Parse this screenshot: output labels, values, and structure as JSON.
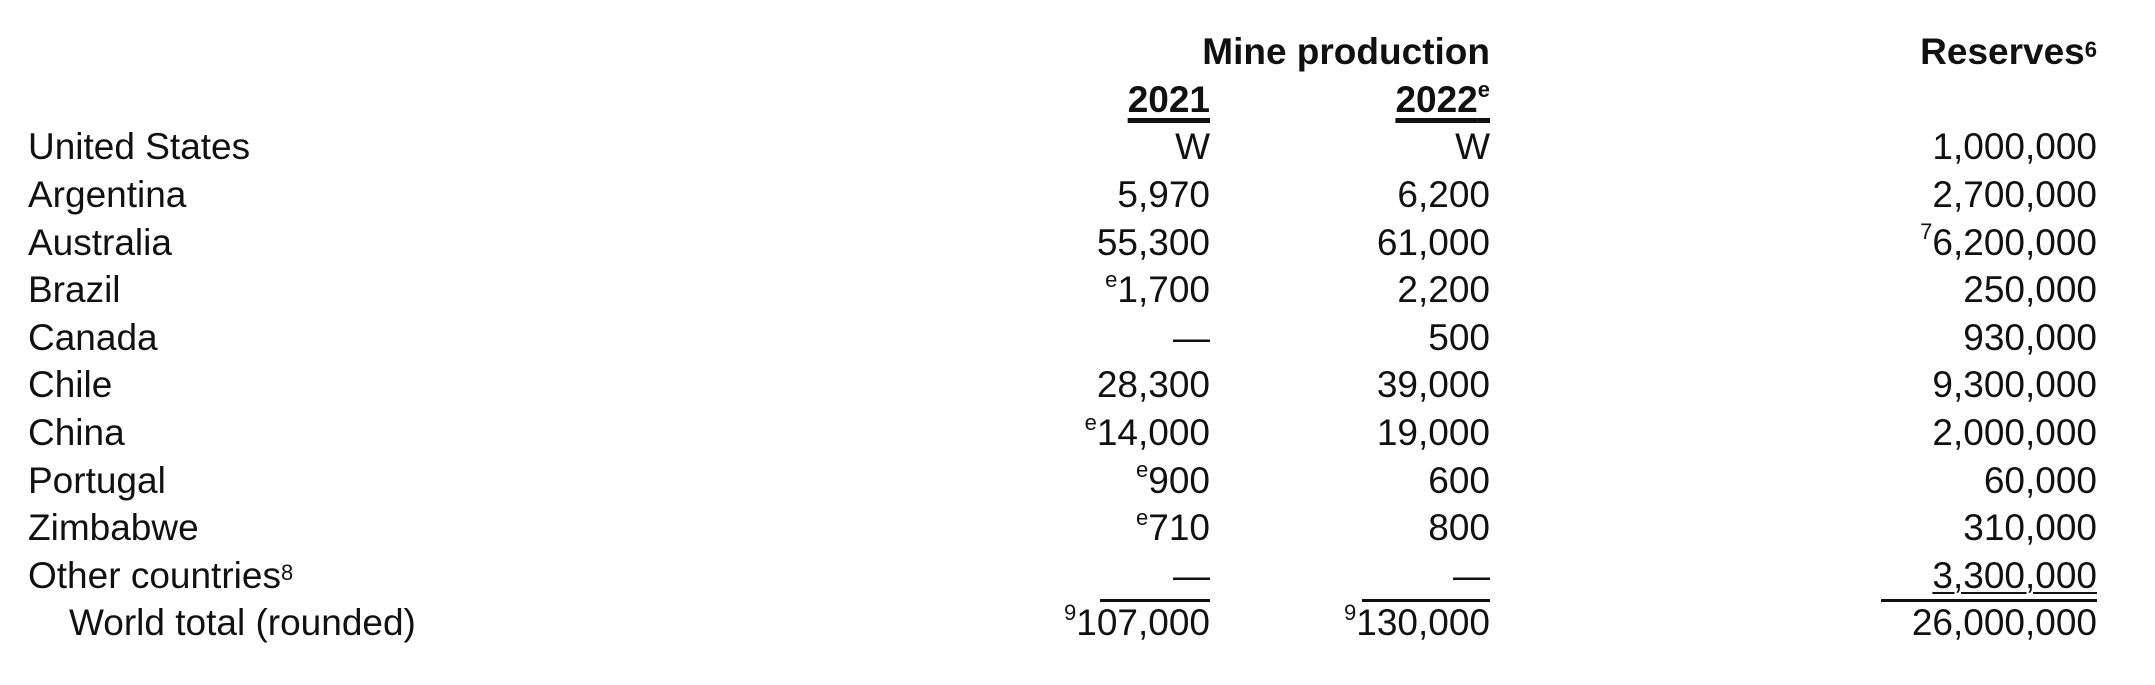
{
  "header": {
    "mine_production": "Mine production",
    "reserves": "Reserves",
    "reserves_note": "6",
    "year1": "2021",
    "year2": "2022",
    "year2_note": "e"
  },
  "rows": [
    {
      "country": "United States",
      "note": "",
      "p2021": "W",
      "p2021_note": "",
      "p2022": "W",
      "reserves": "1,000,000",
      "reserves_note": ""
    },
    {
      "country": "Argentina",
      "note": "",
      "p2021": "5,970",
      "p2021_note": "",
      "p2022": "6,200",
      "reserves": "2,700,000",
      "reserves_note": ""
    },
    {
      "country": "Australia",
      "note": "",
      "p2021": "55,300",
      "p2021_note": "",
      "p2022": "61,000",
      "reserves": "6,200,000",
      "reserves_note": "7"
    },
    {
      "country": "Brazil",
      "note": "",
      "p2021": "1,700",
      "p2021_note": "e",
      "p2022": "2,200",
      "reserves": "250,000",
      "reserves_note": ""
    },
    {
      "country": "Canada",
      "note": "",
      "p2021": "—",
      "p2021_note": "",
      "p2022": "500",
      "reserves": "930,000",
      "reserves_note": ""
    },
    {
      "country": "Chile",
      "note": "",
      "p2021": "28,300",
      "p2021_note": "",
      "p2022": "39,000",
      "reserves": "9,300,000",
      "reserves_note": ""
    },
    {
      "country": "China",
      "note": "",
      "p2021": "14,000",
      "p2021_note": "e",
      "p2022": "19,000",
      "reserves": "2,000,000",
      "reserves_note": ""
    },
    {
      "country": "Portugal",
      "note": "",
      "p2021": "900",
      "p2021_note": "e",
      "p2022": "600",
      "reserves": "60,000",
      "reserves_note": ""
    },
    {
      "country": "Zimbabwe",
      "note": "",
      "p2021": "710",
      "p2021_note": "e",
      "p2022": "800",
      "reserves": "310,000",
      "reserves_note": ""
    },
    {
      "country": "Other countries",
      "note": "8",
      "p2021": "—",
      "p2021_note": "",
      "p2022": "—",
      "reserves": "3,300,000",
      "reserves_note": ""
    }
  ],
  "total": {
    "label": "World total (rounded)",
    "p2021": "107,000",
    "p2021_note": "9",
    "p2022": "130,000",
    "p2022_note": "9",
    "reserves": "26,000,000"
  }
}
